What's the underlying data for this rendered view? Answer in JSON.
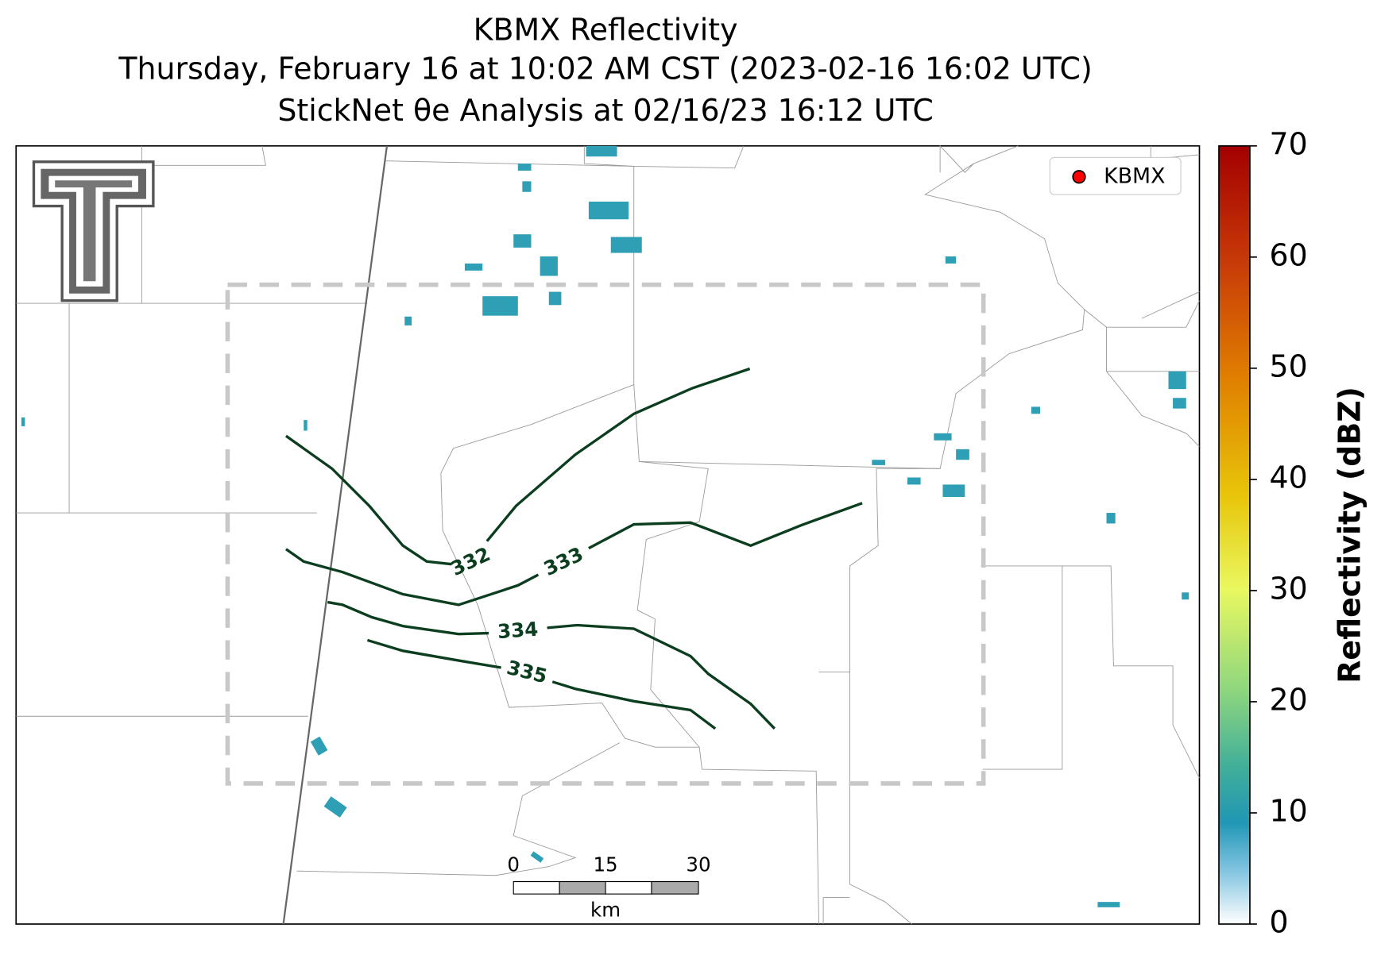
{
  "title": [
    "KBMX Reflectivity",
    "Thursday, February 16 at 10:02 AM CST (2023-02-16 16:02 UTC)",
    "StickNet θe Analysis at 02/16/23 16:12 UTC"
  ],
  "legend": {
    "label": "KBMX",
    "color": "#ff0000"
  },
  "colorbar": {
    "label": "Reflectivity (dBZ)",
    "lim": [
      0,
      70
    ],
    "ticks": [
      0,
      10,
      20,
      30,
      40,
      50,
      60,
      70
    ]
  },
  "contours": [
    {
      "label": "332"
    },
    {
      "label": "333"
    },
    {
      "label": "334"
    },
    {
      "label": "335"
    }
  ],
  "contour_color": "#0b3d1f",
  "scalebar": {
    "ticks": [
      "0",
      "15",
      "30"
    ],
    "unit": "km"
  }
}
